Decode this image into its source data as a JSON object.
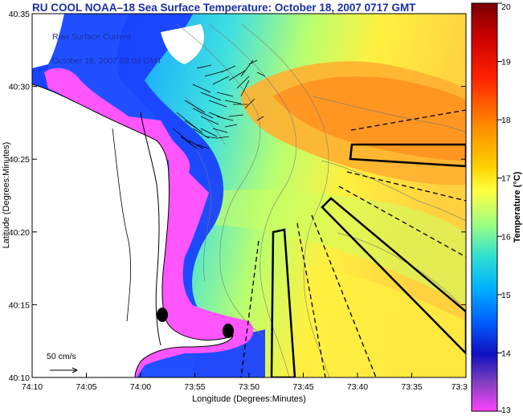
{
  "title": "RU COOL  NOAA–18  Sea Surface Temperature:  October 18, 2007 0717 GMT",
  "legend": {
    "line1": "Raw Surface Current",
    "line2": "October 18, 2007 08:00 GMT"
  },
  "scale_bar": {
    "label": "50 cm/s"
  },
  "axes": {
    "xlabel": "Longitude (Degrees:Minutes)",
    "ylabel": "Latitude (Degrees:Minutes)",
    "x_ticks": [
      "74:10",
      "74:05",
      "74:00",
      "73:55",
      "73:50",
      "73:45",
      "73:40",
      "73:35",
      "73:3"
    ],
    "y_ticks": [
      "40:35",
      "40:30",
      "40:25",
      "40:20",
      "40:15",
      "40:10"
    ]
  },
  "colorbar": {
    "label": "Temperature (°C)",
    "min": 13,
    "max": 20,
    "ticks": [
      "20",
      "19",
      "18",
      "17",
      "16",
      "15",
      "14",
      "13"
    ],
    "colors": [
      "#7a0000",
      "#c80000",
      "#ff3000",
      "#ff8a00",
      "#ffd000",
      "#ffff40",
      "#a0ff80",
      "#30e0d0",
      "#00b0ff",
      "#0040ff",
      "#1010c0",
      "#8040c0",
      "#ff40ff"
    ]
  },
  "colors": {
    "land": "#ffffff",
    "shallow": "#ff55ff",
    "warm_core": "#ff9a20"
  }
}
